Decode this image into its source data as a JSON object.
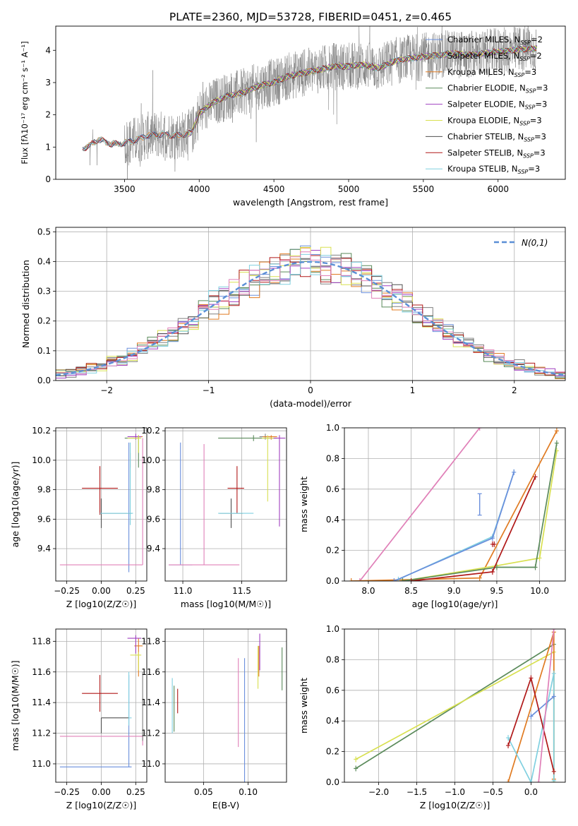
{
  "figure": {
    "title": "PLATE=2360, MJD=53728, FIBERID=0451, z=0.465"
  },
  "colors": {
    "Chabrier MILES": "#6a8fdc",
    "Salpeter MILES": "#808080",
    "Kroupa MILES": "#e07b22",
    "Chabrier ELODIE": "#5a8a5a",
    "Salpeter ELODIE": "#a040c0",
    "Kroupa ELODIE": "#d8e050",
    "Chabrier STELIB": "#505050",
    "Salpeter STELIB": "#b01818",
    "Kroupa STELIB": "#80d0e0",
    "Normal": "#5b8fd6",
    "Pink": "#e080b8"
  },
  "chart_data": [
    {
      "id": "spectrum",
      "type": "line",
      "xlabel": "wavelength [Angstrom, rest frame]",
      "ylabel": "Flux [fλ10⁻¹⁷ erg cm⁻² s⁻¹ A⁻¹]",
      "xlim": [
        3040,
        6450
      ],
      "ylim": [
        0,
        4.75
      ],
      "xticks": [
        3500,
        4000,
        4500,
        5000,
        5500,
        6000
      ],
      "yticks": [
        0,
        1,
        2,
        3,
        4
      ],
      "grid": false,
      "legend_position": "top-right",
      "continuum": [
        [
          3220,
          0.95
        ],
        [
          3270,
          1.05
        ],
        [
          3330,
          1.25
        ],
        [
          3400,
          1.1
        ],
        [
          3480,
          1.1
        ],
        [
          3560,
          1.2
        ],
        [
          3650,
          1.35
        ],
        [
          3750,
          1.4
        ],
        [
          3850,
          1.35
        ],
        [
          3950,
          1.45
        ],
        [
          4000,
          2.05
        ],
        [
          4100,
          2.4
        ],
        [
          4200,
          2.6
        ],
        [
          4300,
          2.7
        ],
        [
          4400,
          2.9
        ],
        [
          4500,
          3.0
        ],
        [
          4600,
          3.2
        ],
        [
          4700,
          3.3
        ],
        [
          4800,
          3.4
        ],
        [
          4900,
          3.5
        ],
        [
          5000,
          3.5
        ],
        [
          5100,
          3.55
        ],
        [
          5200,
          3.45
        ],
        [
          5300,
          3.65
        ],
        [
          5400,
          3.75
        ],
        [
          5500,
          3.8
        ],
        [
          5600,
          3.85
        ],
        [
          5700,
          3.9
        ],
        [
          5800,
          3.85
        ],
        [
          5900,
          3.9
        ],
        [
          6000,
          3.95
        ],
        [
          6100,
          4.0
        ],
        [
          6200,
          4.05
        ],
        [
          6260,
          4.05
        ]
      ],
      "series": [
        {
          "name": "Chabrier MILES, N_SSP=2"
        },
        {
          "name": "Salpeter MILES, N_SSP=2"
        },
        {
          "name": "Kroupa MILES, N_SSP=3"
        },
        {
          "name": "Chabrier ELODIE, N_SSP=3"
        },
        {
          "name": "Salpeter ELODIE, N_SSP=3"
        },
        {
          "name": "Kroupa ELODIE, N_SSP=3"
        },
        {
          "name": "Chabrier STELIB, N_SSP=3"
        },
        {
          "name": "Salpeter STELIB, N_SSP=3"
        },
        {
          "name": "Kroupa STELIB, N_SSP=3"
        }
      ]
    },
    {
      "id": "residuals",
      "type": "histogram",
      "xlabel": "(data-model)/error",
      "ylabel": "Normed distribution",
      "xlim": [
        -2.5,
        2.5
      ],
      "ylim": [
        0,
        0.515
      ],
      "xticks": [
        -2,
        -1,
        0,
        1,
        2
      ],
      "yticks": [
        0,
        0.1,
        0.2,
        0.3,
        0.4,
        0.5
      ],
      "grid": true,
      "legend_position": "top-right",
      "reference_curve": {
        "name": "N(0,1)",
        "mean": 0,
        "sigma": 1
      },
      "bin_width": 0.1
    },
    {
      "id": "age-vs-Z",
      "type": "errorbar",
      "xlabel": "Z [log10(Z/Z☉)]",
      "ylabel": "age  [log10(age/yr)]",
      "xlim": [
        -0.33,
        0.33
      ],
      "ylim": [
        9.18,
        10.22
      ],
      "xticks": [
        -0.25,
        0,
        0.25
      ],
      "yticks": [
        9.4,
        9.6,
        9.8,
        10.0,
        10.2
      ],
      "grid": true,
      "points": [
        {
          "model": "Chabrier MILES",
          "x": 0.2,
          "y": 9.64,
          "xerr": [
            0.0,
            0.0
          ],
          "yerr": [
            0.4,
            0.48
          ]
        },
        {
          "model": "Salpeter MILES",
          "x": 0.21,
          "y": 10.0,
          "xerr": [
            0,
            0
          ],
          "yerr": [
            0.05,
            0.05
          ]
        },
        {
          "model": "Kroupa MILES",
          "x": 0.27,
          "y": 10.16,
          "xerr": [
            0.05,
            0.03
          ],
          "yerr": [
            0.01,
            0.01
          ]
        },
        {
          "model": "Chabrier ELODIE",
          "x": 0.27,
          "y": 10.15,
          "xerr": [
            0.1,
            0.0
          ],
          "yerr": [
            0.2,
            0.02
          ]
        },
        {
          "model": "Salpeter ELODIE",
          "x": 0.25,
          "y": 10.16,
          "xerr": [
            0.06,
            0.04
          ],
          "yerr": [
            0.02,
            0.02
          ]
        },
        {
          "model": "Kroupa ELODIE",
          "x": 0.27,
          "y": 10.15,
          "xerr": [
            0.08,
            0.02
          ],
          "yerr": [
            0.1,
            0.02
          ]
        },
        {
          "model": "Chabrier STELIB",
          "x": 0.0,
          "y": 9.64,
          "xerr": [
            0.0,
            0.22
          ],
          "yerr": [
            0.1,
            0.1
          ]
        },
        {
          "model": "Salpeter STELIB",
          "x": -0.01,
          "y": 9.81,
          "xerr": [
            0.13,
            0.13
          ],
          "yerr": [
            0.18,
            0.15
          ]
        },
        {
          "model": "Kroupa STELIB",
          "x": 0.21,
          "y": 9.64,
          "xerr": [
            0.22,
            0.02
          ],
          "yerr": [
            0.08,
            0.48
          ]
        },
        {
          "model": "Pink",
          "x": 0.3,
          "y": 9.29,
          "xerr": [
            0.6,
            0.0
          ],
          "yerr": [
            0,
            0.86
          ]
        }
      ]
    },
    {
      "id": "age-vs-mass",
      "type": "errorbar",
      "xlabel": "mass [log10(M/M☉)]",
      "xlim": [
        10.85,
        11.88
      ],
      "ylim": [
        9.18,
        10.22
      ],
      "xticks": [
        11.0,
        11.5
      ],
      "yticks": [
        9.4,
        9.6,
        9.8,
        10.0,
        10.2
      ],
      "grid": true,
      "points": [
        {
          "model": "Chabrier MILES",
          "x": 10.98,
          "y": 9.29,
          "xerr": [
            0.1,
            0.1
          ],
          "yerr": [
            0.0,
            0.83
          ]
        },
        {
          "model": "Pink",
          "x": 11.18,
          "y": 9.29,
          "xerr": [
            0.3,
            0.3
          ],
          "yerr": [
            0,
            0.82
          ]
        },
        {
          "model": "Salpeter MILES",
          "x": 11.7,
          "y": 10.16,
          "xerr": [
            0.05,
            0.05
          ],
          "yerr": [
            0.02,
            0.02
          ]
        },
        {
          "model": "Kroupa MILES",
          "x": 11.75,
          "y": 10.16,
          "xerr": [
            0.07,
            0.05
          ],
          "yerr": [
            0.02,
            0.01
          ]
        },
        {
          "model": "Chabrier ELODIE",
          "x": 11.6,
          "y": 10.15,
          "xerr": [
            0.3,
            0.2
          ],
          "yerr": [
            0.02,
            0.02
          ]
        },
        {
          "model": "Salpeter ELODIE",
          "x": 11.82,
          "y": 10.15,
          "xerr": [
            0.1,
            0.05
          ],
          "yerr": [
            0.6,
            0.02
          ]
        },
        {
          "model": "Kroupa ELODIE",
          "x": 11.72,
          "y": 10.15,
          "xerr": [
            0.05,
            0.05
          ],
          "yerr": [
            0.43,
            0.02
          ]
        },
        {
          "model": "Chabrier STELIB",
          "x": 11.41,
          "y": 9.64,
          "xerr": [
            0.1,
            0.1
          ],
          "yerr": [
            0.1,
            0.1
          ]
        },
        {
          "model": "Salpeter STELIB",
          "x": 11.46,
          "y": 9.81,
          "xerr": [
            0.08,
            0.06
          ],
          "yerr": [
            0.17,
            0.15
          ]
        },
        {
          "model": "Kroupa STELIB",
          "x": 11.5,
          "y": 9.64,
          "xerr": [
            0.2,
            0.1
          ],
          "yerr": [
            0,
            0
          ]
        }
      ]
    },
    {
      "id": "weight-vs-age",
      "type": "line",
      "xlabel": "age  [log10(age/yr)]",
      "ylabel": "mass weight",
      "xlim": [
        7.72,
        10.3
      ],
      "ylim": [
        0,
        1
      ],
      "xticks": [
        8.0,
        8.5,
        9.0,
        9.5,
        10.0
      ],
      "yticks": [
        0,
        0.2,
        0.4,
        0.6,
        0.8,
        1.0
      ],
      "grid": true,
      "series": [
        {
          "model": "Pink",
          "x": [
            7.9,
            9.3
          ],
          "y": [
            0.0,
            1.0
          ]
        },
        {
          "model": "Kroupa MILES",
          "x": [
            7.8,
            9.3,
            10.2
          ],
          "y": [
            0.0,
            0.02,
            0.98
          ]
        },
        {
          "model": "Kroupa STELIB",
          "x": [
            8.35,
            9.45,
            9.7
          ],
          "y": [
            0.01,
            0.29,
            0.71
          ]
        },
        {
          "model": "Chabrier MILES",
          "x": [
            8.3,
            9.45,
            9.7
          ],
          "y": [
            0.0,
            0.28,
            0.71
          ]
        },
        {
          "model": "Kroupa ELODIE",
          "x": [
            8.4,
            9.5,
            10.0,
            10.2
          ],
          "y": [
            0.0,
            0.1,
            0.15,
            0.85
          ]
        },
        {
          "model": "Chabrier ELODIE",
          "x": [
            8.4,
            9.5,
            9.95,
            10.2
          ],
          "y": [
            0.0,
            0.09,
            0.09,
            0.9
          ]
        },
        {
          "model": "Salpeter STELIB",
          "x": [
            8.5,
            9.45,
            9.95
          ],
          "y": [
            0.0,
            0.06,
            0.68
          ]
        },
        {
          "model": "Salpeter STELIB",
          "x": [
            9.45,
            9.47
          ],
          "y": [
            0.24,
            0.24
          ]
        }
      ],
      "errorbars": [
        {
          "model": "Chabrier MILES",
          "x": 9.3,
          "y": 0.5,
          "yerr": 0.07
        }
      ]
    },
    {
      "id": "mass-vs-Z",
      "type": "errorbar",
      "xlabel": "Z [log10(Z/Z☉)]",
      "ylabel": "mass [log10(M/M☉)]",
      "xlim": [
        -0.33,
        0.33
      ],
      "ylim": [
        10.88,
        11.88
      ],
      "xticks": [
        -0.25,
        0,
        0.25
      ],
      "yticks": [
        11.0,
        11.2,
        11.4,
        11.6,
        11.8
      ],
      "grid": true,
      "points": [
        {
          "model": "Chabrier MILES",
          "x": 0.2,
          "y": 10.98,
          "xerr": [
            0.5,
            0.02
          ],
          "yerr": [
            0.0,
            0.6
          ]
        },
        {
          "model": "Pink",
          "x": 0.3,
          "y": 11.18,
          "xerr": [
            0.6,
            0.0
          ],
          "yerr": [
            0.06,
            0.0
          ]
        },
        {
          "model": "Kroupa MILES",
          "x": 0.27,
          "y": 11.77,
          "xerr": [
            0.03,
            0.03
          ],
          "yerr": [
            0.2,
            0.05
          ]
        },
        {
          "model": "Salpeter ELODIE",
          "x": 0.25,
          "y": 11.82,
          "xerr": [
            0.06,
            0.04
          ],
          "yerr": [
            0.1,
            0.02
          ]
        },
        {
          "model": "Kroupa ELODIE",
          "x": 0.27,
          "y": 11.71,
          "xerr": [
            0.06,
            0.02
          ],
          "yerr": [
            0.1,
            0.02
          ]
        },
        {
          "model": "Chabrier STELIB",
          "x": 0.0,
          "y": 11.3,
          "xerr": [
            0.0,
            0.2
          ],
          "yerr": [
            0.1,
            0.0
          ]
        },
        {
          "model": "Salpeter STELIB",
          "x": -0.01,
          "y": 11.46,
          "xerr": [
            0.13,
            0.13
          ],
          "yerr": [
            0.12,
            0.12
          ]
        },
        {
          "model": "Kroupa STELIB",
          "x": 0.2,
          "y": 11.3,
          "xerr": [
            0.0,
            0.02
          ],
          "yerr": [
            0.05,
            0.3
          ]
        },
        {
          "model": "Salpeter MILES",
          "x": 0.3,
          "y": 11.3,
          "xerr": [
            0,
            0
          ],
          "yerr": [
            0.15,
            0.3
          ]
        }
      ]
    },
    {
      "id": "mass-vs-ebv",
      "type": "errorbar",
      "xlabel": "E(B-V)",
      "xlim": [
        0.007,
        0.143
      ],
      "ylim": [
        10.88,
        11.88
      ],
      "xticks": [
        0.05,
        0.1
      ],
      "yticks": [
        11.0,
        11.2,
        11.4,
        11.6,
        11.8
      ],
      "grid": true,
      "points": [
        {
          "model": "Kroupa STELIB",
          "x": 0.015,
          "y": 11.4,
          "xerr": [
            0,
            0
          ],
          "yerr": [
            0.2,
            0.16
          ]
        },
        {
          "model": "Chabrier ELODIE",
          "x": 0.017,
          "y": 11.36,
          "xerr": [
            0,
            0
          ],
          "yerr": [
            0.15,
            0.15
          ]
        },
        {
          "model": "Salpeter STELIB",
          "x": 0.021,
          "y": 11.43,
          "xerr": [
            0,
            0
          ],
          "yerr": [
            0.1,
            0.06
          ]
        },
        {
          "model": "Pink",
          "x": 0.089,
          "y": 11.4,
          "xerr": [
            0,
            0
          ],
          "yerr": [
            0.29,
            0.29
          ]
        },
        {
          "model": "Chabrier MILES",
          "x": 0.096,
          "y": 11.28,
          "xerr": [
            0,
            0
          ],
          "yerr": [
            0.41,
            0.41
          ]
        },
        {
          "model": "Kroupa ELODIE",
          "x": 0.111,
          "y": 11.63,
          "xerr": [
            0,
            0
          ],
          "yerr": [
            0.14,
            0.14
          ]
        },
        {
          "model": "Kroupa MILES",
          "x": 0.112,
          "y": 11.67,
          "xerr": [
            0,
            0
          ],
          "yerr": [
            0.1,
            0.1
          ]
        },
        {
          "model": "Salpeter ELODIE",
          "x": 0.113,
          "y": 11.73,
          "xerr": [
            0,
            0
          ],
          "yerr": [
            0.12,
            0.12
          ]
        },
        {
          "model": "Chabrier ELODIE",
          "x": 0.138,
          "y": 11.62,
          "xerr": [
            0,
            0
          ],
          "yerr": [
            0.14,
            0.14
          ]
        }
      ]
    },
    {
      "id": "weight-vs-Z",
      "type": "line",
      "xlabel": "Z [log10(Z/Z☉)]",
      "ylabel": "mass weight",
      "xlim": [
        -2.45,
        0.45
      ],
      "ylim": [
        0,
        1
      ],
      "xticks": [
        -2.0,
        -1.5,
        -1.0,
        -0.5,
        0.0
      ],
      "yticks": [
        0,
        0.2,
        0.4,
        0.6,
        0.8,
        1.0
      ],
      "grid": true,
      "series": [
        {
          "model": "Chabrier ELODIE",
          "x": [
            -2.3,
            0.3
          ],
          "y": [
            0.09,
            0.9
          ]
        },
        {
          "model": "Kroupa ELODIE",
          "x": [
            -2.3,
            0.3,
            0.3
          ],
          "y": [
            0.15,
            0.85,
            0.0
          ]
        },
        {
          "model": "Kroupa MILES",
          "x": [
            -0.3,
            0.3,
            0.3
          ],
          "y": [
            0.0,
            0.98,
            0.02
          ]
        },
        {
          "model": "Kroupa STELIB",
          "x": [
            -0.3,
            0.0,
            0.3,
            0.3
          ],
          "y": [
            0.29,
            0.0,
            0.71,
            0.01
          ]
        },
        {
          "model": "Chabrier MILES",
          "x": [
            0.0,
            0.3
          ],
          "y": [
            0.43,
            0.56
          ]
        },
        {
          "model": "Salpeter STELIB",
          "x": [
            -0.3,
            0.0,
            0.3
          ],
          "y": [
            0.24,
            0.68,
            0.07
          ]
        },
        {
          "model": "Pink",
          "x": [
            0.1,
            0.3
          ],
          "y": [
            0.0,
            1.0
          ]
        }
      ]
    }
  ]
}
